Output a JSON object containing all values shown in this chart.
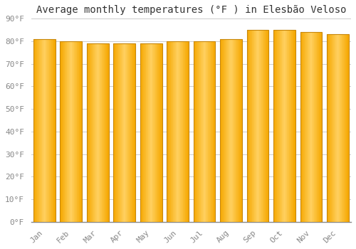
{
  "title": "Average monthly temperatures (°F ) in Elesbão Veloso",
  "months": [
    "Jan",
    "Feb",
    "Mar",
    "Apr",
    "May",
    "Jun",
    "Jul",
    "Aug",
    "Sep",
    "Oct",
    "Nov",
    "Dec"
  ],
  "values": [
    81,
    80,
    79,
    79,
    79,
    80,
    80,
    81,
    85,
    85,
    84,
    83
  ],
  "bar_color_light": "#FFD060",
  "bar_color_dark": "#F5A800",
  "bar_edge_color": "#C8870A",
  "background_color": "#FFFFFF",
  "grid_color": "#CCCCCC",
  "ylim": [
    0,
    90
  ],
  "yticks": [
    0,
    10,
    20,
    30,
    40,
    50,
    60,
    70,
    80,
    90
  ],
  "ytick_labels": [
    "0°F",
    "10°F",
    "20°F",
    "30°F",
    "40°F",
    "50°F",
    "60°F",
    "70°F",
    "80°F",
    "90°F"
  ],
  "title_fontsize": 10,
  "tick_fontsize": 8,
  "font_family": "monospace"
}
